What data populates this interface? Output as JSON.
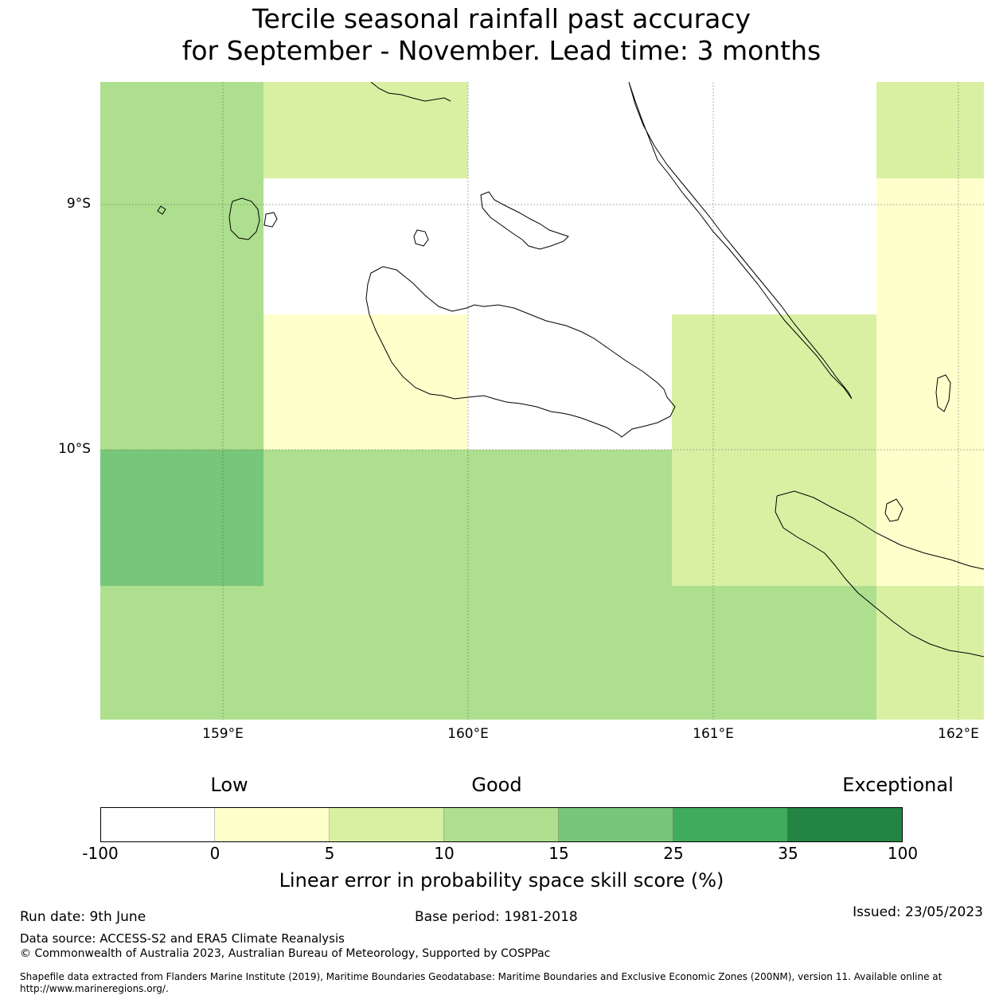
{
  "title": {
    "line1": "Tercile seasonal rainfall past accuracy",
    "line2": "for September - November. Lead time: 3 months"
  },
  "map": {
    "lat_labels": [
      "9°S",
      "10°S"
    ],
    "lon_labels": [
      "159°E",
      "160°E",
      "161°E",
      "162°E"
    ],
    "extent": {
      "lon": [
        158.5,
        162.1
      ],
      "lat": [
        -11.1,
        -8.5
      ]
    },
    "cell_colors": [
      [
        "#addf8e",
        "#d9f0a3",
        "#d9f0a3",
        "#ffffff",
        "#ffffff",
        "#ffffff",
        "#ffffff",
        "#d9f0a3"
      ],
      [
        "#addf8e",
        "#ffffff",
        "#ffffff",
        "#ffffff",
        "#ffffff",
        "#ffffff",
        "#ffffff",
        "#ffffcc"
      ],
      [
        "#addf8e",
        "#ffffcc",
        "#ffffcc",
        "#ffffff",
        "#ffffff",
        "#d9f0a3",
        "#d9f0a3",
        "#ffffcc"
      ],
      [
        "#addf8e",
        "#ffffcc",
        "#ffffcc",
        "#ffffff",
        "#ffffff",
        "#d9f0a3",
        "#d9f0a3",
        "#ffffcc"
      ],
      [
        "#78c679",
        "#addf8e",
        "#addf8e",
        "#addf8e",
        "#addf8e",
        "#d9f0a3",
        "#d9f0a3",
        "#ffffcc"
      ],
      [
        "#addf8e",
        "#addf8e",
        "#addf8e",
        "#addf8e",
        "#addf8e",
        "#addf8e",
        "#addf8e",
        "#d9f0a3"
      ]
    ]
  },
  "colorbar": {
    "words": [
      "Low",
      "Good",
      "Exceptional"
    ],
    "ticks": [
      "-100",
      "0",
      "5",
      "10",
      "15",
      "25",
      "35",
      "100"
    ],
    "colors": [
      "#ffffff",
      "#ffffcc",
      "#d9f0a3",
      "#addf8e",
      "#78c679",
      "#41ab5d",
      "#238443"
    ],
    "label": "Linear error in probability space skill score (%)"
  },
  "footer": {
    "run_date": "Run date: 9th June",
    "base_period": "Base period: 1981-2018",
    "issued": "Issued: 23/05/2023",
    "data_source": "Data source: ACCESS-S2 and ERA5 Climate Reanalysis",
    "copyright": "© Commonwealth of Australia 2023, Australian Bureau of Meteorology, Supported by COSPPac",
    "shapefile_line1": "Shapefile data extracted from Flanders Marine Institute (2019), Maritime Boundaries Geodatabase: Maritime Boundaries and Exclusive Economic Zones (200NM), version 11. Available online at",
    "shapefile_line2": "http://www.marineregions.org/."
  }
}
